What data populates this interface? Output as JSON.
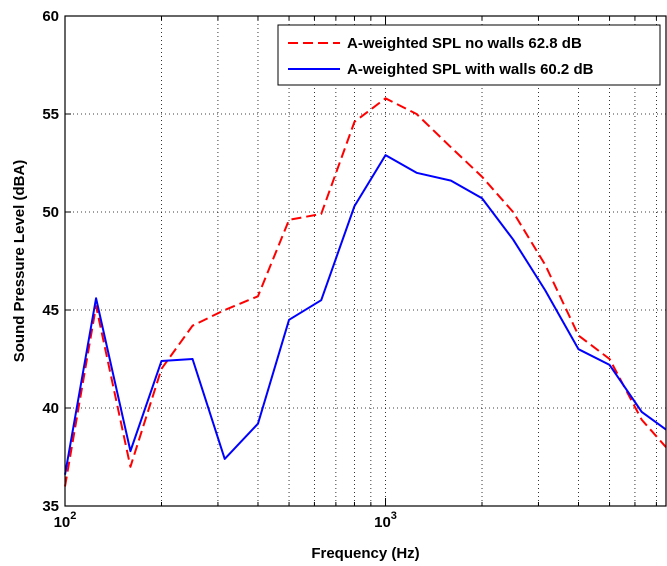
{
  "chart_data": {
    "type": "line",
    "title": "",
    "xlabel": "Frequency (Hz)",
    "ylabel": "Sound Pressure Level (dBA)",
    "xscale": "log",
    "xlim": [
      100,
      7500
    ],
    "ylim": [
      35,
      60
    ],
    "grid": true,
    "legend_position": "top-right",
    "x_ticks": [
      {
        "value": 100,
        "base": "10",
        "exp": "2"
      },
      {
        "value": 1000,
        "base": "10",
        "exp": "3"
      }
    ],
    "y_ticks": [
      "35",
      "40",
      "45",
      "50",
      "55",
      "60"
    ],
    "series": [
      {
        "name": "A-weighted SPL no walls 62.8 dB",
        "color": "#ff0000",
        "style": "dashed",
        "x": [
          100,
          125,
          160,
          200,
          250,
          315,
          400,
          500,
          630,
          800,
          1000,
          1250,
          1600,
          2000,
          2500,
          3150,
          4000,
          5000,
          6300,
          7500
        ],
        "y": [
          36.0,
          45.2,
          37.0,
          42.0,
          44.2,
          45.0,
          45.7,
          49.6,
          49.9,
          54.6,
          55.8,
          55.0,
          53.3,
          51.8,
          50.0,
          47.3,
          43.7,
          42.5,
          39.4,
          38.0
        ]
      },
      {
        "name": "A-weighted SPL with walls 60.2 dB",
        "color": "#0000ff",
        "style": "solid",
        "x": [
          100,
          125,
          160,
          200,
          250,
          315,
          400,
          500,
          630,
          800,
          1000,
          1250,
          1600,
          2000,
          2500,
          3150,
          4000,
          5000,
          6300,
          7500
        ],
        "y": [
          36.6,
          45.6,
          37.8,
          42.4,
          42.5,
          37.4,
          39.2,
          44.5,
          45.5,
          50.3,
          52.9,
          52.0,
          51.6,
          50.7,
          48.6,
          46.0,
          43.0,
          42.2,
          39.8,
          38.9
        ]
      }
    ]
  }
}
